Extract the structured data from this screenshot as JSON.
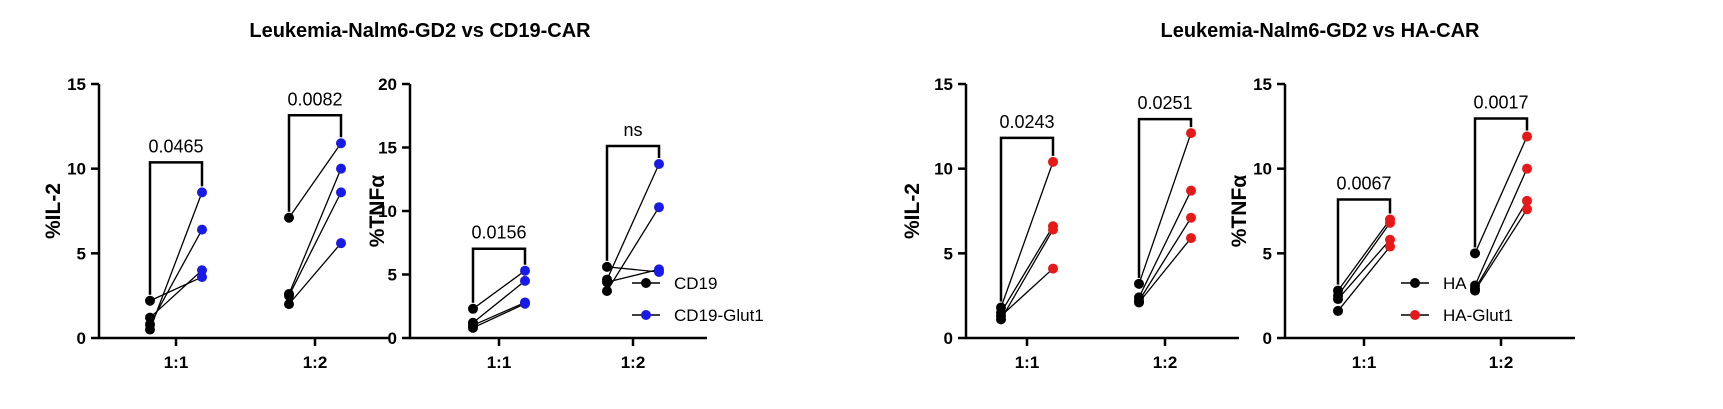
{
  "titles": {
    "left": "Leukemia-Nalm6-GD2 vs CD19-CAR",
    "right": "Leukemia-Nalm6-GD2 vs HA-CAR"
  },
  "chart_data": [
    {
      "type": "scatter",
      "ylabel": "%IL-2",
      "ylim": [
        0,
        15
      ],
      "yticks": [
        0,
        5,
        10,
        15
      ],
      "categories": [
        "1:1",
        "1:2"
      ],
      "series": [
        {
          "name": "CD19",
          "color": "#000000"
        },
        {
          "name": "CD19-Glut1",
          "color": "#1a1ae6"
        }
      ],
      "pairs": [
        [
          [
            2.2,
            3.6
          ],
          [
            1.2,
            4.0
          ],
          [
            0.8,
            6.4
          ],
          [
            0.5,
            8.6
          ]
        ],
        [
          [
            7.1,
            11.5
          ],
          [
            2.6,
            10.0
          ],
          [
            2.5,
            8.6
          ],
          [
            2.0,
            5.6
          ]
        ]
      ],
      "annotations": [
        "0.0465",
        "0.0082"
      ]
    },
    {
      "type": "scatter",
      "ylabel": "%TNFα",
      "ylim": [
        0,
        20
      ],
      "yticks": [
        0,
        5,
        10,
        15,
        20
      ],
      "categories": [
        "1:1",
        "1:2"
      ],
      "series": [
        {
          "name": "CD19",
          "color": "#000000"
        },
        {
          "name": "CD19-Glut1",
          "color": "#1a1ae6"
        }
      ],
      "pairs": [
        [
          [
            2.3,
            5.3
          ],
          [
            1.2,
            4.5
          ],
          [
            1.0,
            2.8
          ],
          [
            0.8,
            2.7
          ]
        ],
        [
          [
            5.6,
            5.2
          ],
          [
            4.6,
            13.7
          ],
          [
            4.4,
            5.4
          ],
          [
            3.7,
            10.3
          ]
        ]
      ],
      "annotations": [
        "0.0156",
        "ns"
      ]
    },
    {
      "type": "scatter",
      "ylabel": "%IL-2",
      "ylim": [
        0,
        15
      ],
      "yticks": [
        0,
        5,
        10,
        15
      ],
      "categories": [
        "1:1",
        "1:2"
      ],
      "series": [
        {
          "name": "HA",
          "color": "#000000"
        },
        {
          "name": "HA-Glut1",
          "color": "#e61919"
        }
      ],
      "pairs": [
        [
          [
            1.8,
            10.4
          ],
          [
            1.5,
            6.6
          ],
          [
            1.3,
            4.1
          ],
          [
            1.1,
            6.4
          ]
        ],
        [
          [
            3.2,
            12.1
          ],
          [
            2.4,
            8.7
          ],
          [
            2.2,
            7.1
          ],
          [
            2.1,
            5.9
          ]
        ]
      ],
      "annotations": [
        "0.0243",
        "0.0251"
      ]
    },
    {
      "type": "scatter",
      "ylabel": "%TNFα",
      "ylim": [
        0,
        15
      ],
      "yticks": [
        0,
        5,
        10,
        15
      ],
      "categories": [
        "1:1",
        "1:2"
      ],
      "series": [
        {
          "name": "HA",
          "color": "#000000"
        },
        {
          "name": "HA-Glut1",
          "color": "#e61919"
        }
      ],
      "pairs": [
        [
          [
            2.8,
            7.0
          ],
          [
            2.5,
            6.8
          ],
          [
            2.3,
            5.8
          ],
          [
            1.6,
            5.4
          ]
        ],
        [
          [
            5.0,
            11.9
          ],
          [
            3.1,
            10.0
          ],
          [
            2.9,
            8.1
          ],
          [
            2.8,
            7.6
          ]
        ]
      ],
      "annotations": [
        "0.0067",
        "0.0017"
      ]
    }
  ],
  "legends": [
    {
      "items": [
        {
          "label": "CD19",
          "color": "#000000"
        },
        {
          "label": "CD19-Glut1",
          "color": "#1a1ae6"
        }
      ]
    },
    {
      "items": [
        {
          "label": "HA",
          "color": "#000000"
        },
        {
          "label": "HA-Glut1",
          "color": "#e61919"
        }
      ]
    }
  ]
}
